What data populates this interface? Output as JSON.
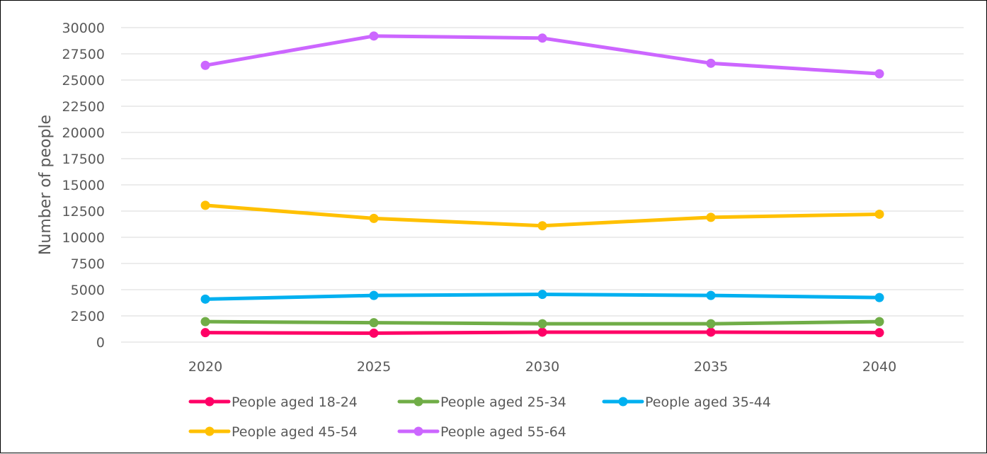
{
  "chart_data": {
    "type": "line",
    "title": "",
    "xlabel": "",
    "ylabel": "Number of people",
    "x": [
      "2020",
      "2025",
      "2030",
      "2035",
      "2040"
    ],
    "ylim": [
      0,
      30000
    ],
    "yticks": [
      "0",
      "2500",
      "5000",
      "7500",
      "10000",
      "12500",
      "15000",
      "17500",
      "20000",
      "22500",
      "25000",
      "27500",
      "30000"
    ],
    "grid": true,
    "legend": "bottom",
    "series": [
      {
        "name": "People aged 18-24",
        "color": "#ff0066",
        "values": [
          900,
          850,
          950,
          950,
          900
        ]
      },
      {
        "name": "People aged 25-34",
        "color": "#70ad47",
        "values": [
          1950,
          1850,
          1750,
          1750,
          1950
        ]
      },
      {
        "name": "People aged 35-44",
        "color": "#00b0f0",
        "values": [
          4100,
          4450,
          4550,
          4450,
          4250
        ]
      },
      {
        "name": "People aged 45-54",
        "color": "#ffc000",
        "values": [
          13050,
          11800,
          11100,
          11900,
          12200
        ]
      },
      {
        "name": "People aged 55-64",
        "color": "#cc66ff",
        "values": [
          26400,
          29200,
          29000,
          26600,
          25600
        ]
      }
    ]
  }
}
